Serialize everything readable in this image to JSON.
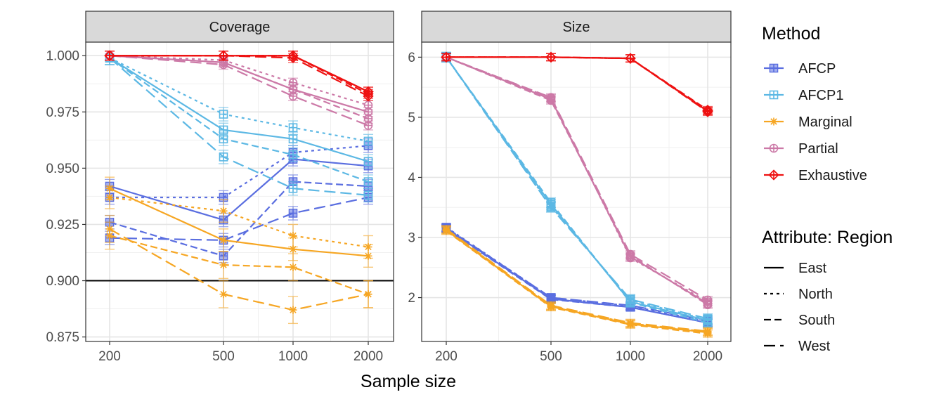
{
  "chart_data": {
    "type": "line",
    "xlabel": "Sample size",
    "x": [
      200,
      500,
      1000,
      2000
    ],
    "x_tick_labels": [
      "200",
      "500",
      "1000",
      "2000"
    ],
    "x_scale": "log",
    "panels": [
      {
        "title": "Coverage",
        "ylim": [
          0.873,
          1.006
        ],
        "y_ticks": [
          0.875,
          0.9,
          0.925,
          0.95,
          0.975,
          1.0
        ],
        "y_tick_labels": [
          "0.875",
          "0.900",
          "0.925",
          "0.950",
          "0.975",
          "1.000"
        ],
        "reference_line": 0.9,
        "series": [
          {
            "method": "AFCP",
            "region": "East",
            "values": [
              0.942,
              0.927,
              0.954,
              0.951
            ],
            "err": 0.003
          },
          {
            "method": "AFCP",
            "region": "North",
            "values": [
              0.937,
              0.937,
              0.957,
              0.96
            ],
            "err": 0.003
          },
          {
            "method": "AFCP",
            "region": "South",
            "values": [
              0.926,
              0.911,
              0.944,
              0.942
            ],
            "err": 0.003
          },
          {
            "method": "AFCP",
            "region": "West",
            "values": [
              0.919,
              0.918,
              0.93,
              0.937
            ],
            "err": 0.003
          },
          {
            "method": "AFCP1",
            "region": "East",
            "values": [
              0.999,
              0.967,
              0.963,
              0.953
            ],
            "err": 0.003
          },
          {
            "method": "AFCP1",
            "region": "North",
            "values": [
              0.999,
              0.974,
              0.968,
              0.962
            ],
            "err": 0.003
          },
          {
            "method": "AFCP1",
            "region": "South",
            "values": [
              0.999,
              0.963,
              0.956,
              0.944
            ],
            "err": 0.003
          },
          {
            "method": "AFCP1",
            "region": "West",
            "values": [
              0.999,
              0.955,
              0.941,
              0.938
            ],
            "err": 0.003
          },
          {
            "method": "Marginal",
            "region": "East",
            "values": [
              0.941,
              0.918,
              0.914,
              0.911
            ],
            "err": 0.005
          },
          {
            "method": "Marginal",
            "region": "North",
            "values": [
              0.937,
              0.931,
              0.92,
              0.915
            ],
            "err": 0.005
          },
          {
            "method": "Marginal",
            "region": "South",
            "values": [
              0.92,
              0.907,
              0.906,
              0.894
            ],
            "err": 0.006
          },
          {
            "method": "Marginal",
            "region": "West",
            "values": [
              0.923,
              0.894,
              0.887,
              0.894
            ],
            "err": 0.006
          },
          {
            "method": "Partial",
            "region": "East",
            "values": [
              1.0,
              0.997,
              0.985,
              0.975
            ],
            "err": 0.002
          },
          {
            "method": "Partial",
            "region": "North",
            "values": [
              1.0,
              0.998,
              0.988,
              0.978
            ],
            "err": 0.002
          },
          {
            "method": "Partial",
            "region": "South",
            "values": [
              1.0,
              0.997,
              0.985,
              0.972
            ],
            "err": 0.002
          },
          {
            "method": "Partial",
            "region": "West",
            "values": [
              1.0,
              0.996,
              0.982,
              0.969
            ],
            "err": 0.002
          },
          {
            "method": "Exhaustive",
            "region": "East",
            "values": [
              1.0,
              1.0,
              1.0,
              0.984
            ],
            "err": 0.002
          },
          {
            "method": "Exhaustive",
            "region": "North",
            "values": [
              1.0,
              1.0,
              1.0,
              0.984
            ],
            "err": 0.002
          },
          {
            "method": "Exhaustive",
            "region": "South",
            "values": [
              1.0,
              1.0,
              1.0,
              0.983
            ],
            "err": 0.002
          },
          {
            "method": "Exhaustive",
            "region": "West",
            "values": [
              1.0,
              1.0,
              0.999,
              0.982
            ],
            "err": 0.002
          }
        ]
      },
      {
        "title": "Size",
        "ylim": [
          1.27,
          6.25
        ],
        "y_ticks": [
          2,
          3,
          4,
          5,
          6
        ],
        "y_tick_labels": [
          "2",
          "3",
          "4",
          "5",
          "6"
        ],
        "series": [
          {
            "method": "AFCP",
            "region": "East",
            "values": [
              3.15,
              1.98,
              1.84,
              1.58
            ],
            "err": 0.06
          },
          {
            "method": "AFCP",
            "region": "North",
            "values": [
              3.17,
              2.0,
              1.86,
              1.6
            ],
            "err": 0.06
          },
          {
            "method": "AFCP",
            "region": "South",
            "values": [
              3.14,
              1.97,
              1.84,
              1.58
            ],
            "err": 0.06
          },
          {
            "method": "AFCP",
            "region": "West",
            "values": [
              3.16,
              2.0,
              1.87,
              1.62
            ],
            "err": 0.06
          },
          {
            "method": "AFCP1",
            "region": "East",
            "values": [
              6.0,
              3.55,
              1.93,
              1.62
            ],
            "err": 0.08
          },
          {
            "method": "AFCP1",
            "region": "North",
            "values": [
              6.0,
              3.52,
              1.96,
              1.63
            ],
            "err": 0.08
          },
          {
            "method": "AFCP1",
            "region": "South",
            "values": [
              6.0,
              3.58,
              1.92,
              1.58
            ],
            "err": 0.08
          },
          {
            "method": "AFCP1",
            "region": "West",
            "values": [
              6.0,
              3.5,
              1.97,
              1.65
            ],
            "err": 0.08
          },
          {
            "method": "Marginal",
            "region": "East",
            "values": [
              3.12,
              1.85,
              1.56,
              1.42
            ],
            "err": 0.06
          },
          {
            "method": "Marginal",
            "region": "North",
            "values": [
              3.13,
              1.86,
              1.57,
              1.43
            ],
            "err": 0.06
          },
          {
            "method": "Marginal",
            "region": "South",
            "values": [
              3.11,
              1.84,
              1.55,
              1.4
            ],
            "err": 0.06
          },
          {
            "method": "Marginal",
            "region": "West",
            "values": [
              3.14,
              1.87,
              1.58,
              1.44
            ],
            "err": 0.06
          },
          {
            "method": "Partial",
            "region": "East",
            "values": [
              6.0,
              5.3,
              2.68,
              1.9
            ],
            "err": 0.06
          },
          {
            "method": "Partial",
            "region": "North",
            "values": [
              6.0,
              5.32,
              2.66,
              1.93
            ],
            "err": 0.06
          },
          {
            "method": "Partial",
            "region": "South",
            "values": [
              6.0,
              5.28,
              2.7,
              1.88
            ],
            "err": 0.06
          },
          {
            "method": "Partial",
            "region": "West",
            "values": [
              6.0,
              5.33,
              2.72,
              1.96
            ],
            "err": 0.06
          },
          {
            "method": "Exhaustive",
            "region": "East",
            "values": [
              6.0,
              6.0,
              5.98,
              5.1
            ],
            "err": 0.06
          },
          {
            "method": "Exhaustive",
            "region": "North",
            "values": [
              6.0,
              6.0,
              5.98,
              5.11
            ],
            "err": 0.06
          },
          {
            "method": "Exhaustive",
            "region": "South",
            "values": [
              6.0,
              6.0,
              5.98,
              5.12
            ],
            "err": 0.06
          },
          {
            "method": "Exhaustive",
            "region": "West",
            "values": [
              6.0,
              6.0,
              5.98,
              5.09
            ],
            "err": 0.06
          }
        ]
      }
    ],
    "legend_method": {
      "title": "Method",
      "placement": "right",
      "items": [
        {
          "name": "AFCP",
          "color": "#5a6ee0",
          "marker": "square-x"
        },
        {
          "name": "AFCP1",
          "color": "#5cb8e4",
          "marker": "square-plus"
        },
        {
          "name": "Marginal",
          "color": "#f6a623",
          "marker": "asterisk"
        },
        {
          "name": "Partial",
          "color": "#cc79a7",
          "marker": "circle-plus"
        },
        {
          "name": "Exhaustive",
          "color": "#ee1111",
          "marker": "diamond-plus"
        }
      ]
    },
    "legend_region": {
      "title": "Attribute: Region",
      "placement": "right",
      "items": [
        {
          "name": "East",
          "dash": "solid"
        },
        {
          "name": "North",
          "dash": "dotted"
        },
        {
          "name": "South",
          "dash": "dashed"
        },
        {
          "name": "West",
          "dash": "longdash"
        }
      ]
    }
  }
}
